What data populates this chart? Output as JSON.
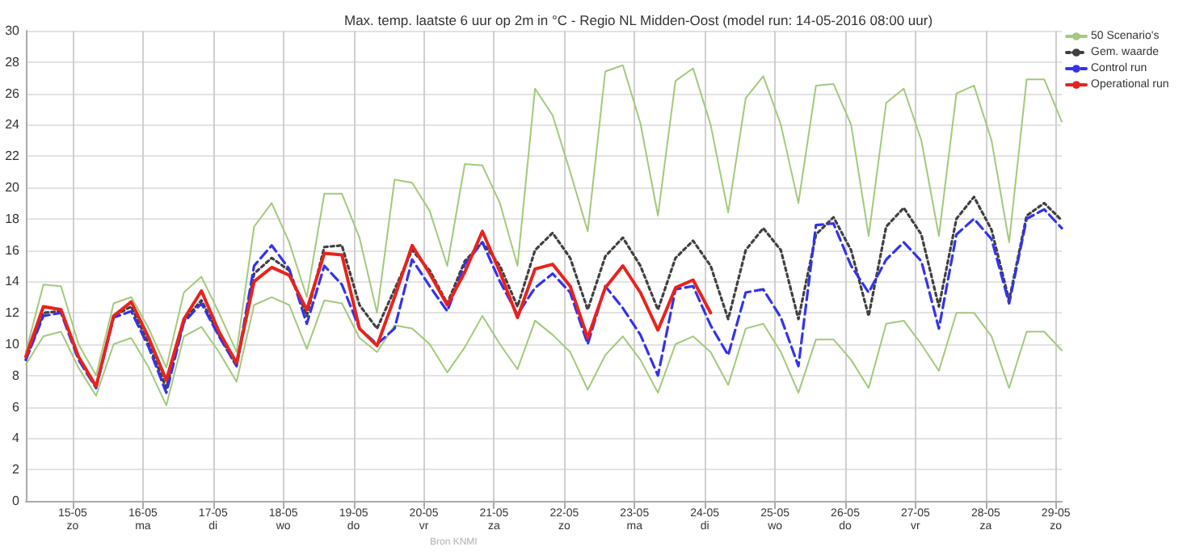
{
  "chart_data": {
    "type": "line",
    "title": "Max. temp. laatste 6 uur op 2m in °C - Regio NL Midden-Oost (model run: 14-05-2016 08:00 uur)",
    "annotations": [
      "Bron KNMI"
    ],
    "x": [
      "2016-05-14T08:00",
      "2016-05-14T14:00",
      "2016-05-14T20:00",
      "2016-05-15T02:00",
      "2016-05-15T08:00",
      "2016-05-15T14:00",
      "2016-05-15T20:00",
      "2016-05-16T02:00",
      "2016-05-16T08:00",
      "2016-05-16T14:00",
      "2016-05-16T20:00",
      "2016-05-17T02:00",
      "2016-05-17T08:00",
      "2016-05-17T14:00",
      "2016-05-17T20:00",
      "2016-05-18T02:00",
      "2016-05-18T08:00",
      "2016-05-18T14:00",
      "2016-05-18T20:00",
      "2016-05-19T02:00",
      "2016-05-19T08:00",
      "2016-05-19T14:00",
      "2016-05-19T20:00",
      "2016-05-20T02:00",
      "2016-05-20T08:00",
      "2016-05-20T14:00",
      "2016-05-20T20:00",
      "2016-05-21T02:00",
      "2016-05-21T08:00",
      "2016-05-21T14:00",
      "2016-05-21T20:00",
      "2016-05-22T02:00",
      "2016-05-22T08:00",
      "2016-05-22T14:00",
      "2016-05-22T20:00",
      "2016-05-23T02:00",
      "2016-05-23T08:00",
      "2016-05-23T14:00",
      "2016-05-23T20:00",
      "2016-05-24T02:00",
      "2016-05-24T08:00",
      "2016-05-24T14:00",
      "2016-05-24T20:00",
      "2016-05-25T02:00",
      "2016-05-25T08:00",
      "2016-05-25T14:00",
      "2016-05-25T20:00",
      "2016-05-26T02:00",
      "2016-05-26T08:00",
      "2016-05-26T14:00",
      "2016-05-26T20:00",
      "2016-05-27T02:00",
      "2016-05-27T08:00",
      "2016-05-27T14:00",
      "2016-05-27T20:00",
      "2016-05-28T02:00",
      "2016-05-28T08:00",
      "2016-05-28T14:00",
      "2016-05-28T20:00",
      "2016-05-29T02:00"
    ],
    "series": [
      {
        "name": "50 Scenario's",
        "color": "#a3c97c",
        "values": [
          9.5,
          13.8,
          13.7,
          10,
          8.0,
          12.6,
          13.0,
          11,
          8.5,
          13.3,
          14.3,
          12,
          9.5,
          17.5,
          19.0,
          16.5,
          13,
          19.6,
          19.6,
          16.8,
          12,
          20.5,
          20.3,
          18.5,
          15,
          21.5,
          21.4,
          19,
          15,
          26.3,
          24.6,
          21,
          17.2,
          27.4,
          27.8,
          24.1,
          18.2,
          26.8,
          27.6,
          24,
          18.4,
          25.7,
          27.1,
          24,
          19,
          26.5,
          26.6,
          24,
          16.9,
          25.4,
          26.3,
          23,
          16.9,
          26.0,
          26.5,
          23,
          16.5,
          26.9,
          26.9,
          24.2
        ]
      },
      {
        "color": "#a3c97c",
        "values": [
          8.7,
          10.5,
          10.8,
          8.5,
          6.7,
          10,
          10.4,
          8.5,
          6.1,
          10.5,
          11.1,
          9.5,
          7.6,
          12.5,
          13.0,
          12.5,
          9.7,
          12.8,
          12.6,
          10.4,
          9.5,
          11.2,
          11.0,
          10,
          8.2,
          9.8,
          11.8,
          10,
          8.4,
          11.5,
          10.6,
          9.5,
          7.1,
          9.3,
          10.5,
          9.0,
          6.9,
          10.0,
          10.5,
          9.5,
          7.4,
          11.0,
          11.3,
          9.5,
          6.9,
          10.3,
          10.3,
          9.0,
          7.2,
          11.3,
          11.5,
          10,
          8.3,
          12.0,
          12,
          10.5,
          7.2,
          10.8,
          10.8,
          9.6
        ]
      },
      {
        "name": "Gem. waarde",
        "color": "#404040",
        "line_style": "dotted",
        "values": [
          9.0,
          12.0,
          12.1,
          9.2,
          7.3,
          11.8,
          12.4,
          10.0,
          7.2,
          11.5,
          12.8,
          10.6,
          8.6,
          14.5,
          15.5,
          14.7,
          11.8,
          16.2,
          16.3,
          12.5,
          11.0,
          13.5,
          16.0,
          14.7,
          12.6,
          15.3,
          16.5,
          15.0,
          12.4,
          16.0,
          17.1,
          15.5,
          12.2,
          15.6,
          16.8,
          15.0,
          12.2,
          15.5,
          16.6,
          15.0,
          11.6,
          16.0,
          17.4,
          16.0,
          11.6,
          17.0,
          18.1,
          16.0,
          11.8,
          17.5,
          18.7,
          17.0,
          12.4,
          18.0,
          19.4,
          17.3,
          12.8,
          18.2,
          19.0,
          17.9
        ]
      },
      {
        "name": "Control run",
        "color": "#3333ee",
        "line_style": "dashed",
        "values": [
          9.0,
          11.8,
          12.0,
          9.0,
          7.2,
          11.7,
          12.1,
          9.8,
          6.9,
          11.4,
          12.6,
          10.5,
          8.6,
          15.0,
          16.3,
          14.8,
          11.3,
          15.0,
          13.8,
          11.0,
          10.0,
          11.0,
          15.4,
          13.7,
          12.1,
          15.1,
          16.5,
          14.0,
          11.9,
          13.6,
          14.5,
          13.3,
          10.0,
          13.7,
          12.3,
          10.6,
          8.0,
          13.5,
          13.7,
          11.2,
          9.3,
          13.3,
          13.5,
          11.7,
          8.6,
          17.6,
          17.7,
          15.0,
          13.3,
          15.4,
          16.5,
          15.3,
          11.0,
          17.0,
          18.0,
          16.7,
          12.6,
          18.0,
          18.6,
          17.4
        ]
      },
      {
        "name": "Operational run",
        "color": "#e8231d",
        "values": [
          9.2,
          12.4,
          12.2,
          9.2,
          7.3,
          11.8,
          12.7,
          10.4,
          7.7,
          11.6,
          13.4,
          10.8,
          8.8,
          14.0,
          14.9,
          14.4,
          12.2,
          15.8,
          15.7,
          11.0,
          9.9,
          13.0,
          16.3,
          14.5,
          12.5,
          14.6,
          17.2,
          14.6,
          11.7,
          14.8,
          15.1,
          13.7,
          10.4,
          13.6,
          15.0,
          13.3,
          10.9,
          13.6,
          14.1,
          12.0,
          null,
          null,
          null,
          null,
          null,
          null,
          null,
          null,
          null,
          null,
          null,
          null,
          null,
          null,
          null,
          null,
          null,
          null,
          null,
          null
        ]
      }
    ],
    "xlim": [
      "2016-05-14T08:00",
      "2016-05-29T02:00"
    ],
    "xticks": [
      {
        "value": "2016-05-15",
        "label": "15-05\nzo"
      },
      {
        "value": "2016-05-16",
        "label": "16-05\nma"
      },
      {
        "value": "2016-05-17",
        "label": "17-05\ndi"
      },
      {
        "value": "2016-05-18",
        "label": "18-05\nwo"
      },
      {
        "value": "2016-05-19",
        "label": "19-05\ndo"
      },
      {
        "value": "2016-05-20",
        "label": "20-05\nvr"
      },
      {
        "value": "2016-05-21",
        "label": "21-05\nza"
      },
      {
        "value": "2016-05-22",
        "label": "22-05\nzo"
      },
      {
        "value": "2016-05-23",
        "label": "23-05\nma"
      },
      {
        "value": "2016-05-24",
        "label": "24-05\ndi"
      },
      {
        "value": "2016-05-25",
        "label": "25-05\nwo"
      },
      {
        "value": "2016-05-26",
        "label": "26-05\ndo"
      },
      {
        "value": "2016-05-27",
        "label": "27-05\nvr"
      },
      {
        "value": "2016-05-28",
        "label": "28-05\nza"
      },
      {
        "value": "2016-05-29",
        "label": "29-05\nzo"
      }
    ],
    "ylim": [
      0,
      30
    ],
    "yticks": [
      0,
      2,
      4,
      6,
      8,
      10,
      12,
      14,
      16,
      18,
      20,
      22,
      24,
      26,
      28,
      30
    ],
    "grid": true,
    "legend": "right",
    "marker": "none",
    "line_style": "solid"
  }
}
